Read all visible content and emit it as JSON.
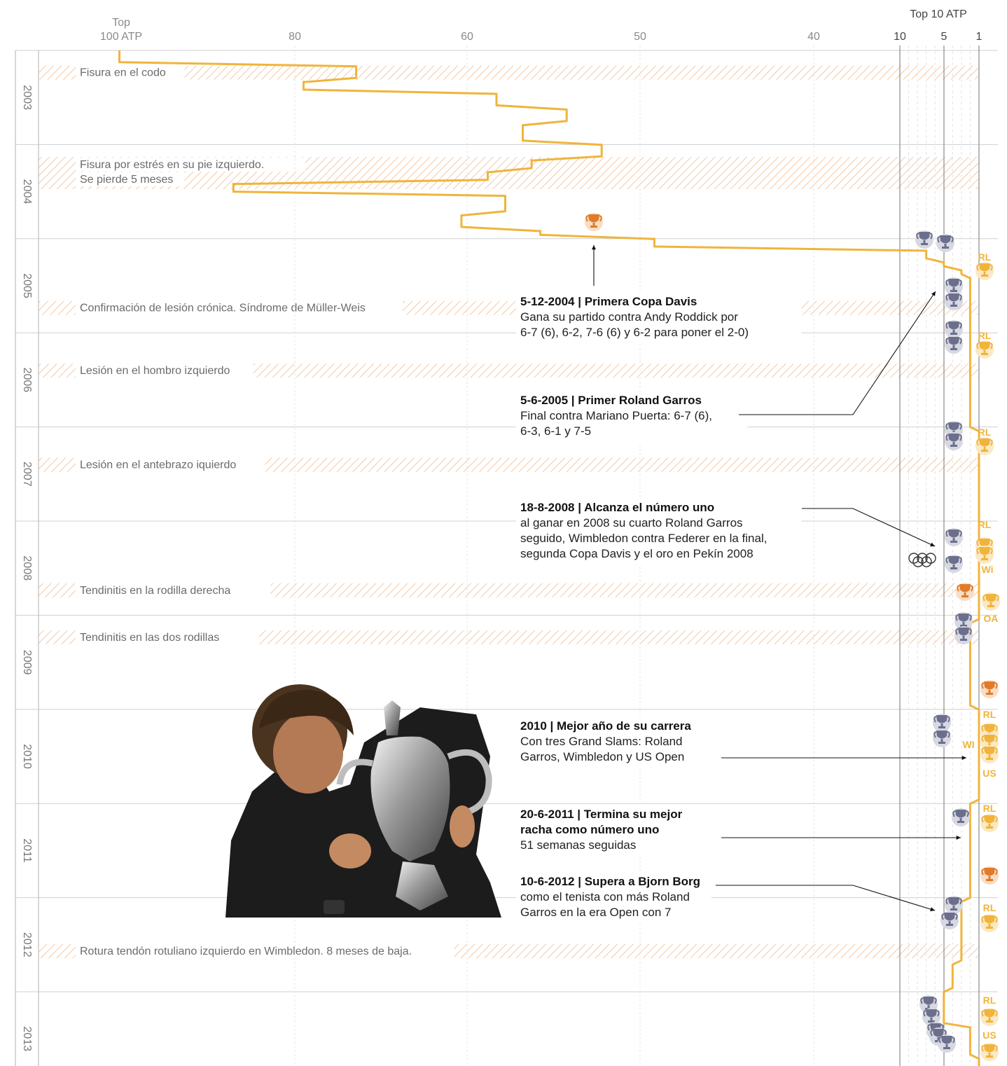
{
  "colors": {
    "ranking_line": "#f0b43c",
    "injury_hatch": "#f3c9a8",
    "trophy_grandslam": "#f0b43c",
    "trophy_grandslam_bg": "#fbe8c4",
    "trophy_masters": "#6b6f8c",
    "trophy_masters_bg": "#d7d8e2",
    "trophy_davis": "#e07b2a",
    "trophy_davis_bg": "#f8dcc4",
    "gridline": "#cfcfcf",
    "annotation_text": "#111111"
  },
  "chart_data": {
    "type": "line",
    "title": "",
    "axis": {
      "left_group_label": "Top",
      "left_label": "100 ATP",
      "right_group_label": "Top 10 ATP",
      "ticks_top100": [
        "80",
        "60",
        "50",
        "40"
      ],
      "ticks_top10": [
        "10",
        "5",
        "1"
      ],
      "orientation": "ranking on horizontal axis, time on vertical axis",
      "years": [
        "2003",
        "2004",
        "2005",
        "2006",
        "2007",
        "2008",
        "2009",
        "2010",
        "2011",
        "2012",
        "2013"
      ]
    },
    "series": [
      {
        "values_rank_by_date": [
          [
            "2003-01",
            99
          ],
          [
            "2003-04",
            72
          ],
          [
            "2003-05",
            78
          ],
          [
            "2003-07",
            56
          ],
          [
            "2003-09",
            48
          ],
          [
            "2003-11",
            53
          ],
          [
            "2004-02",
            44
          ],
          [
            "2004-03",
            52
          ],
          [
            "2004-05",
            57
          ],
          [
            "2004-06",
            86
          ],
          [
            "2004-08",
            55
          ],
          [
            "2004-11",
            60
          ],
          [
            "2004-12",
            51
          ],
          [
            "2005-01",
            38
          ],
          [
            "2005-03",
            7
          ],
          [
            "2005-04",
            5
          ],
          [
            "2005-05",
            3
          ],
          [
            "2005-06",
            2
          ],
          [
            "2008-08",
            1
          ],
          [
            "2009-07",
            2
          ],
          [
            "2010-06",
            1
          ],
          [
            "2011-07",
            2
          ],
          [
            "2012-07",
            3
          ],
          [
            "2012-11",
            4
          ],
          [
            "2013-02",
            5
          ],
          [
            "2013-08",
            2
          ],
          [
            "2013-10",
            1
          ]
        ]
      }
    ],
    "injuries": [
      {
        "text": "Fisura en el codo",
        "date": "2003-04"
      },
      {
        "text_lines": [
          "Fisura por estrés en su pie izquierdo.",
          "Se pierde 5 meses"
        ],
        "date": "2004-04"
      },
      {
        "text": "Confirmación de lesión crónica. Síndrome de Müller-Weis",
        "date": "2005-10"
      },
      {
        "text": "Lesión en el hombro izquierdo",
        "date": "2006-06"
      },
      {
        "text": "Lesión en el antebrazo iquierdo",
        "date": "2007-06"
      },
      {
        "text": "Tendinitis en la rodilla derecha",
        "date": "2008-10"
      },
      {
        "text": "Tendinitis en las dos rodillas",
        "date": "2009-04"
      },
      {
        "text": "Rotura tendón rotuliano izquierdo en Wimbledon. 8 meses de baja.",
        "date": "2012-08"
      }
    ],
    "titles": {
      "grand_slams": [
        {
          "code": "RL",
          "year": "2005"
        },
        {
          "code": "RL",
          "year": "2006"
        },
        {
          "code": "RL",
          "year": "2007"
        },
        {
          "code": "RL",
          "year": "2008"
        },
        {
          "code": "Wi",
          "year": "2008"
        },
        {
          "code": "OA",
          "year": "2009"
        },
        {
          "code": "RL",
          "year": "2010"
        },
        {
          "code": "WI",
          "year": "2010"
        },
        {
          "code": "US",
          "year": "2010"
        },
        {
          "code": "RL",
          "year": "2011"
        },
        {
          "code": "RL",
          "year": "2012"
        },
        {
          "code": "RL",
          "year": "2013"
        },
        {
          "code": "US",
          "year": "2013"
        }
      ],
      "davis_cups": [
        "2004",
        "2008",
        "2009",
        "2011"
      ],
      "olympic_gold": "2008"
    },
    "annotations": [
      {
        "title": "5-12-2004 | Primera Copa Davis",
        "body": [
          "Gana su partido contra Andy Roddick por",
          "6-7 (6), 6-2, 7-6 (6) y 6-2 para poner el 2-0)"
        ]
      },
      {
        "title": "5-6-2005 | Primer Roland Garros",
        "body": [
          "Final contra Mariano Puerta: 6-7 (6),",
          "6-3, 6-1 y 7-5"
        ]
      },
      {
        "title": "18-8-2008 | Alcanza el número uno",
        "body": [
          "al ganar en 2008 su cuarto Roland Garros",
          "seguido, Wimbledon contra Federer en la final,",
          "segunda Copa Davis y el oro en Pekín 2008"
        ]
      },
      {
        "title": "2010 | Mejor año de su carrera",
        "body": [
          "Con tres Grand Slams: Roland",
          "Garros, Wimbledon y US Open"
        ]
      },
      {
        "title_lines": [
          "20-6-2011 | Termina su mejor",
          "racha como número uno"
        ],
        "body": [
          "51 semanas seguidas"
        ]
      },
      {
        "title": "10-6-2012 | Supera a Bjorn Borg",
        "body": [
          "como el tenista con más Roland",
          "Garros en la era Open con 7"
        ]
      }
    ]
  },
  "photo": {
    "subject": "player-holding-us-open-trophy"
  }
}
